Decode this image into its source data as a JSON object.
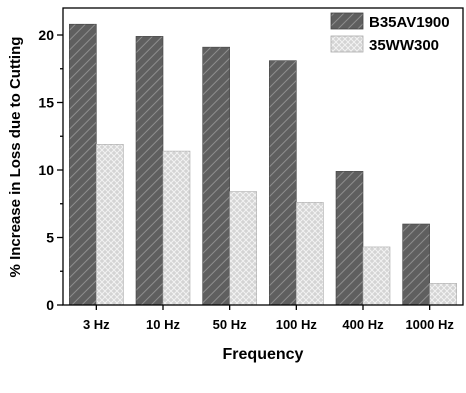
{
  "chart_data": {
    "type": "bar",
    "title": "",
    "xlabel": "Frequency",
    "ylabel": "% Increase in Loss due to Cutting",
    "categories": [
      "3 Hz",
      "10 Hz",
      "50 Hz",
      "100 Hz",
      "400 Hz",
      "1000 Hz"
    ],
    "series": [
      {
        "name": "B35AV1900",
        "values": [
          20.8,
          19.9,
          19.1,
          18.1,
          9.9,
          6.0
        ],
        "color": "#5a5a5a",
        "pattern": "diagonal-hatch"
      },
      {
        "name": "35WW300",
        "values": [
          11.9,
          11.4,
          8.4,
          7.6,
          4.3,
          1.6
        ],
        "color": "#d2d2d2",
        "pattern": "crosshatch"
      }
    ],
    "ylim": [
      0,
      22
    ],
    "yticks": [
      0,
      5,
      10,
      15,
      20
    ],
    "legend_position": "top-right",
    "grid": false
  }
}
